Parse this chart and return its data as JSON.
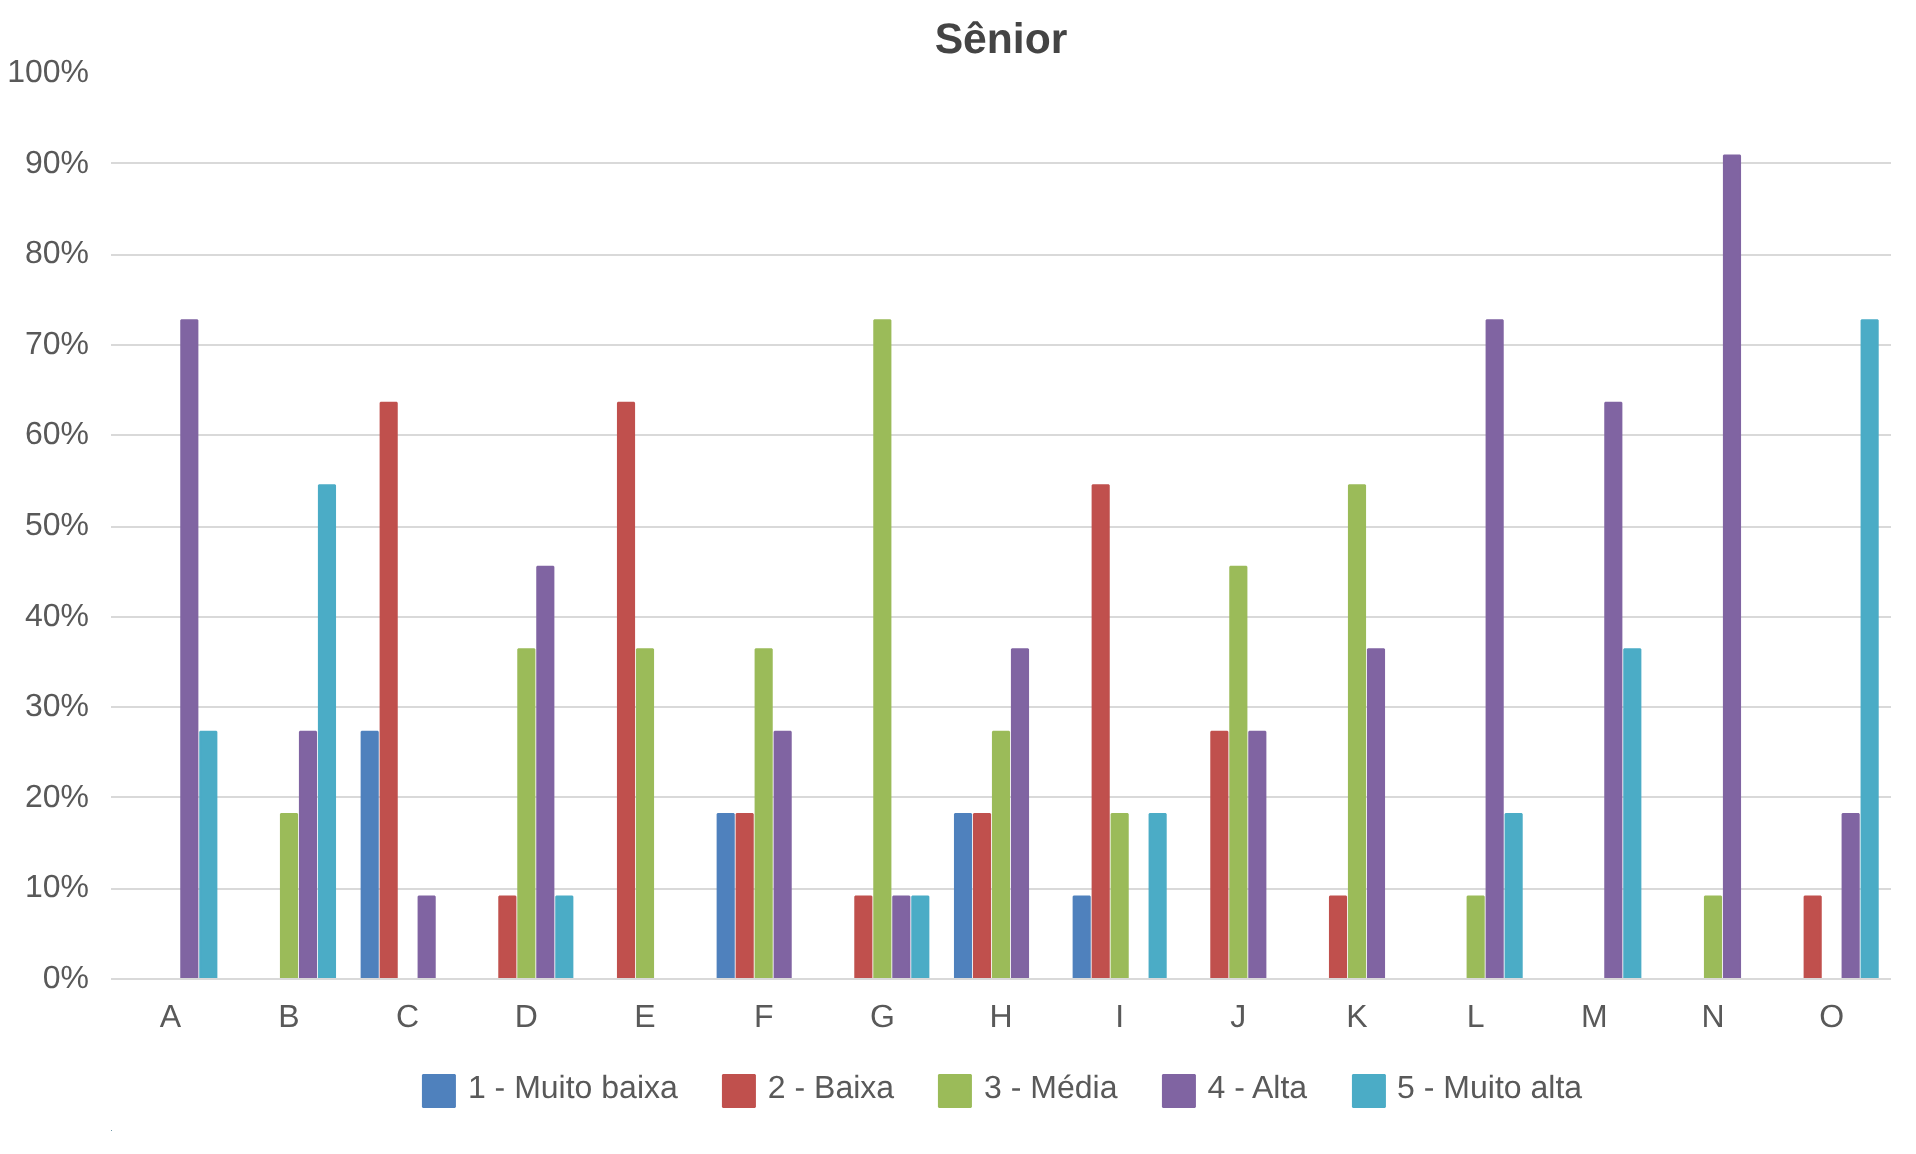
{
  "chart_data": {
    "type": "bar",
    "title": "Sênior",
    "categories": [
      "A",
      "B",
      "C",
      "D",
      "E",
      "F",
      "G",
      "H",
      "I",
      "J",
      "K",
      "L",
      "M",
      "N",
      "O"
    ],
    "series": [
      {
        "name": "1 - Muito baixa",
        "color": "#4f81bd",
        "values": [
          0,
          0,
          27.3,
          0,
          0,
          18.2,
          0,
          18.2,
          9.1,
          0,
          0,
          0,
          0,
          0,
          0
        ]
      },
      {
        "name": "2 - Baixa",
        "color": "#c0504d",
        "values": [
          0,
          0,
          63.6,
          9.1,
          63.6,
          18.2,
          9.1,
          18.2,
          54.5,
          27.3,
          9.1,
          0,
          0,
          0,
          9.1
        ]
      },
      {
        "name": "3 - Média",
        "color": "#9bbb59",
        "values": [
          0,
          18.2,
          0,
          36.4,
          36.4,
          36.4,
          72.7,
          27.3,
          18.2,
          45.5,
          54.5,
          9.1,
          0,
          9.1,
          0
        ]
      },
      {
        "name": "4 - Alta",
        "color": "#8064a2",
        "values": [
          72.7,
          27.3,
          9.1,
          45.5,
          0,
          27.3,
          9.1,
          36.4,
          0,
          27.3,
          36.4,
          72.7,
          63.6,
          90.9,
          18.2
        ]
      },
      {
        "name": "5 - Muito alta",
        "color": "#4bacc6",
        "values": [
          27.3,
          54.5,
          0,
          9.1,
          0,
          0,
          9.1,
          0,
          18.2,
          0,
          0,
          18.2,
          36.4,
          0,
          72.7
        ]
      }
    ],
    "ylim": [
      0,
      100
    ],
    "yticks": [
      {
        "value": 0,
        "label": "0%"
      },
      {
        "value": 10,
        "label": "10%"
      },
      {
        "value": 20,
        "label": "20%"
      },
      {
        "value": 30,
        "label": "30%"
      },
      {
        "value": 40,
        "label": "40%"
      },
      {
        "value": 50,
        "label": "50%"
      },
      {
        "value": 60,
        "label": "60%"
      },
      {
        "value": 70,
        "label": "70%"
      },
      {
        "value": 80,
        "label": "80%"
      },
      {
        "value": 90,
        "label": "90%"
      },
      {
        "value": 100,
        "label": "100%"
      }
    ],
    "grid": "y",
    "legend": "bottom"
  }
}
